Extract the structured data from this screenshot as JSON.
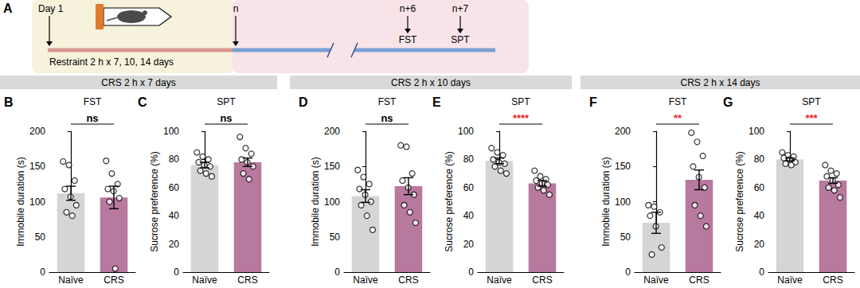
{
  "panel_a": {
    "label": "A",
    "day_start": "Day 1",
    "day_end": "n",
    "restraint": "Restraint 2 h x 7, 10, 14 days",
    "tests": [
      {
        "day": "n+6",
        "test": "FST"
      },
      {
        "day": "n+7",
        "test": "SPT"
      }
    ]
  },
  "sections": [
    {
      "title": "CRS 2 h x 7 days",
      "panels": [
        "B",
        "C"
      ]
    },
    {
      "title": "CRS 2 h x 10 days",
      "panels": [
        "D",
        "E"
      ]
    },
    {
      "title": "CRS 2 h x 14 days",
      "panels": [
        "F",
        "G"
      ]
    }
  ],
  "chart_data": [
    {
      "panel": "B",
      "type": "bar",
      "title": "FST",
      "categories": [
        "Naïve",
        "CRS"
      ],
      "values": [
        112,
        106
      ],
      "errors": [
        10,
        16
      ],
      "points": [
        [
          157,
          152,
          130,
          118,
          107,
          95,
          85,
          80
        ],
        [
          158,
          140,
          125,
          118,
          115,
          105,
          100,
          5
        ]
      ],
      "colors": [
        "#d4d5d5",
        "#b8799f"
      ],
      "ylabel": "Immobile duration (s)",
      "ylim": [
        0,
        200
      ],
      "yticks": [
        0,
        50,
        100,
        150,
        200
      ],
      "annotation": {
        "text": "ns",
        "color": "#000000"
      }
    },
    {
      "panel": "C",
      "type": "bar",
      "title": "SPT",
      "categories": [
        "Naïve",
        "CRS"
      ],
      "values": [
        76,
        78
      ],
      "errors": [
        2,
        3
      ],
      "points": [
        [
          85,
          82,
          80,
          78,
          76,
          75,
          72,
          70,
          68
        ],
        [
          96,
          88,
          84,
          80,
          78,
          75,
          70,
          66
        ]
      ],
      "colors": [
        "#d4d5d5",
        "#b8799f"
      ],
      "ylabel": "Sucrose preference (%)",
      "ylim": [
        0,
        100
      ],
      "yticks": [
        0,
        20,
        40,
        60,
        80,
        100
      ],
      "annotation": {
        "text": "ns",
        "color": "#000000"
      }
    },
    {
      "panel": "D",
      "type": "bar",
      "title": "FST",
      "categories": [
        "Naïve",
        "CRS"
      ],
      "values": [
        108,
        122
      ],
      "errors": [
        9,
        12
      ],
      "points": [
        [
          145,
          135,
          125,
          118,
          110,
          100,
          95,
          80,
          60
        ],
        [
          180,
          178,
          140,
          130,
          120,
          110,
          95,
          85,
          70
        ]
      ],
      "colors": [
        "#d4d5d5",
        "#b8799f"
      ],
      "ylabel": "Immobile duration (s)",
      "ylim": [
        0,
        200
      ],
      "yticks": [
        0,
        50,
        100,
        150,
        200
      ],
      "annotation": {
        "text": "ns",
        "color": "#000000"
      }
    },
    {
      "panel": "E",
      "type": "bar",
      "title": "SPT",
      "categories": [
        "Naïve",
        "CRS"
      ],
      "values": [
        79,
        63
      ],
      "errors": [
        2,
        2
      ],
      "points": [
        [
          88,
          85,
          83,
          80,
          78,
          77,
          75,
          72,
          70
        ],
        [
          72,
          68,
          66,
          65,
          63,
          62,
          60,
          58,
          55
        ]
      ],
      "colors": [
        "#d4d5d5",
        "#b8799f"
      ],
      "ylabel": "Sucrose preference (%)",
      "ylim": [
        0,
        100
      ],
      "yticks": [
        0,
        20,
        40,
        60,
        80,
        100
      ],
      "annotation": {
        "text": "****",
        "color": "#e8262b"
      }
    },
    {
      "panel": "F",
      "type": "bar",
      "title": "FST",
      "categories": [
        "Naïve",
        "CRS"
      ],
      "values": [
        70,
        131
      ],
      "errors": [
        15,
        14
      ],
      "points": [
        [
          95,
          93,
          85,
          80,
          65,
          35,
          25
        ],
        [
          198,
          185,
          165,
          150,
          135,
          120,
          95,
          80,
          65
        ]
      ],
      "colors": [
        "#d4d5d5",
        "#b8799f"
      ],
      "ylabel": "Immobile duration (s)",
      "ylim": [
        0,
        200
      ],
      "yticks": [
        0,
        50,
        100,
        150,
        200
      ],
      "annotation": {
        "text": "**",
        "color": "#e8262b"
      }
    },
    {
      "panel": "G",
      "type": "bar",
      "title": "SPT",
      "categories": [
        "Naïve",
        "CRS"
      ],
      "values": [
        80,
        65
      ],
      "errors": [
        1,
        2
      ],
      "points": [
        [
          85,
          83,
          82,
          81,
          80,
          78,
          77,
          76
        ],
        [
          76,
          72,
          70,
          68,
          65,
          62,
          60,
          58,
          53
        ]
      ],
      "colors": [
        "#d4d5d5",
        "#b8799f"
      ],
      "ylabel": "Sucrose preference (%)",
      "ylim": [
        0,
        100
      ],
      "yticks": [
        0,
        20,
        40,
        60,
        80,
        100
      ],
      "annotation": {
        "text": "***",
        "color": "#e8262b"
      }
    }
  ]
}
